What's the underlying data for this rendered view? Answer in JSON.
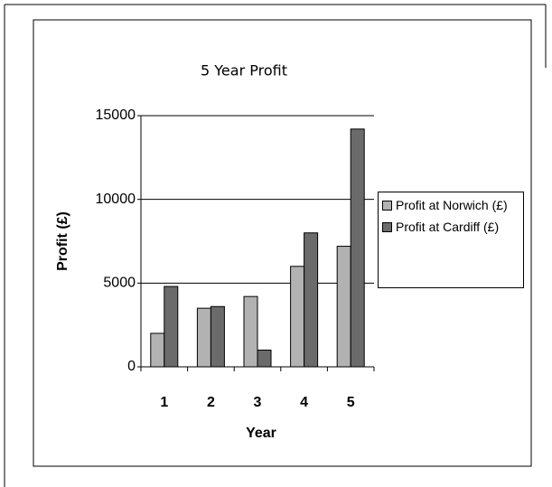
{
  "chart_data": {
    "type": "bar",
    "title": "5 Year Profit",
    "x_label": "Year",
    "y_label": "Profit (£)",
    "categories": [
      "1",
      "2",
      "3",
      "4",
      "5"
    ],
    "series": [
      {
        "name": "Profit at Norwich (£)",
        "color": "#b2b2b2",
        "values": [
          2000,
          3500,
          4200,
          6000,
          7200
        ]
      },
      {
        "name": "Profit at Cardiff (£)",
        "color": "#6b6b6b",
        "values": [
          4800,
          3600,
          1000,
          8000,
          14200
        ]
      }
    ],
    "ylim": [
      0,
      15000
    ],
    "yticks": [
      0,
      5000,
      10000,
      15000
    ],
    "grid": true,
    "legend": "right"
  }
}
